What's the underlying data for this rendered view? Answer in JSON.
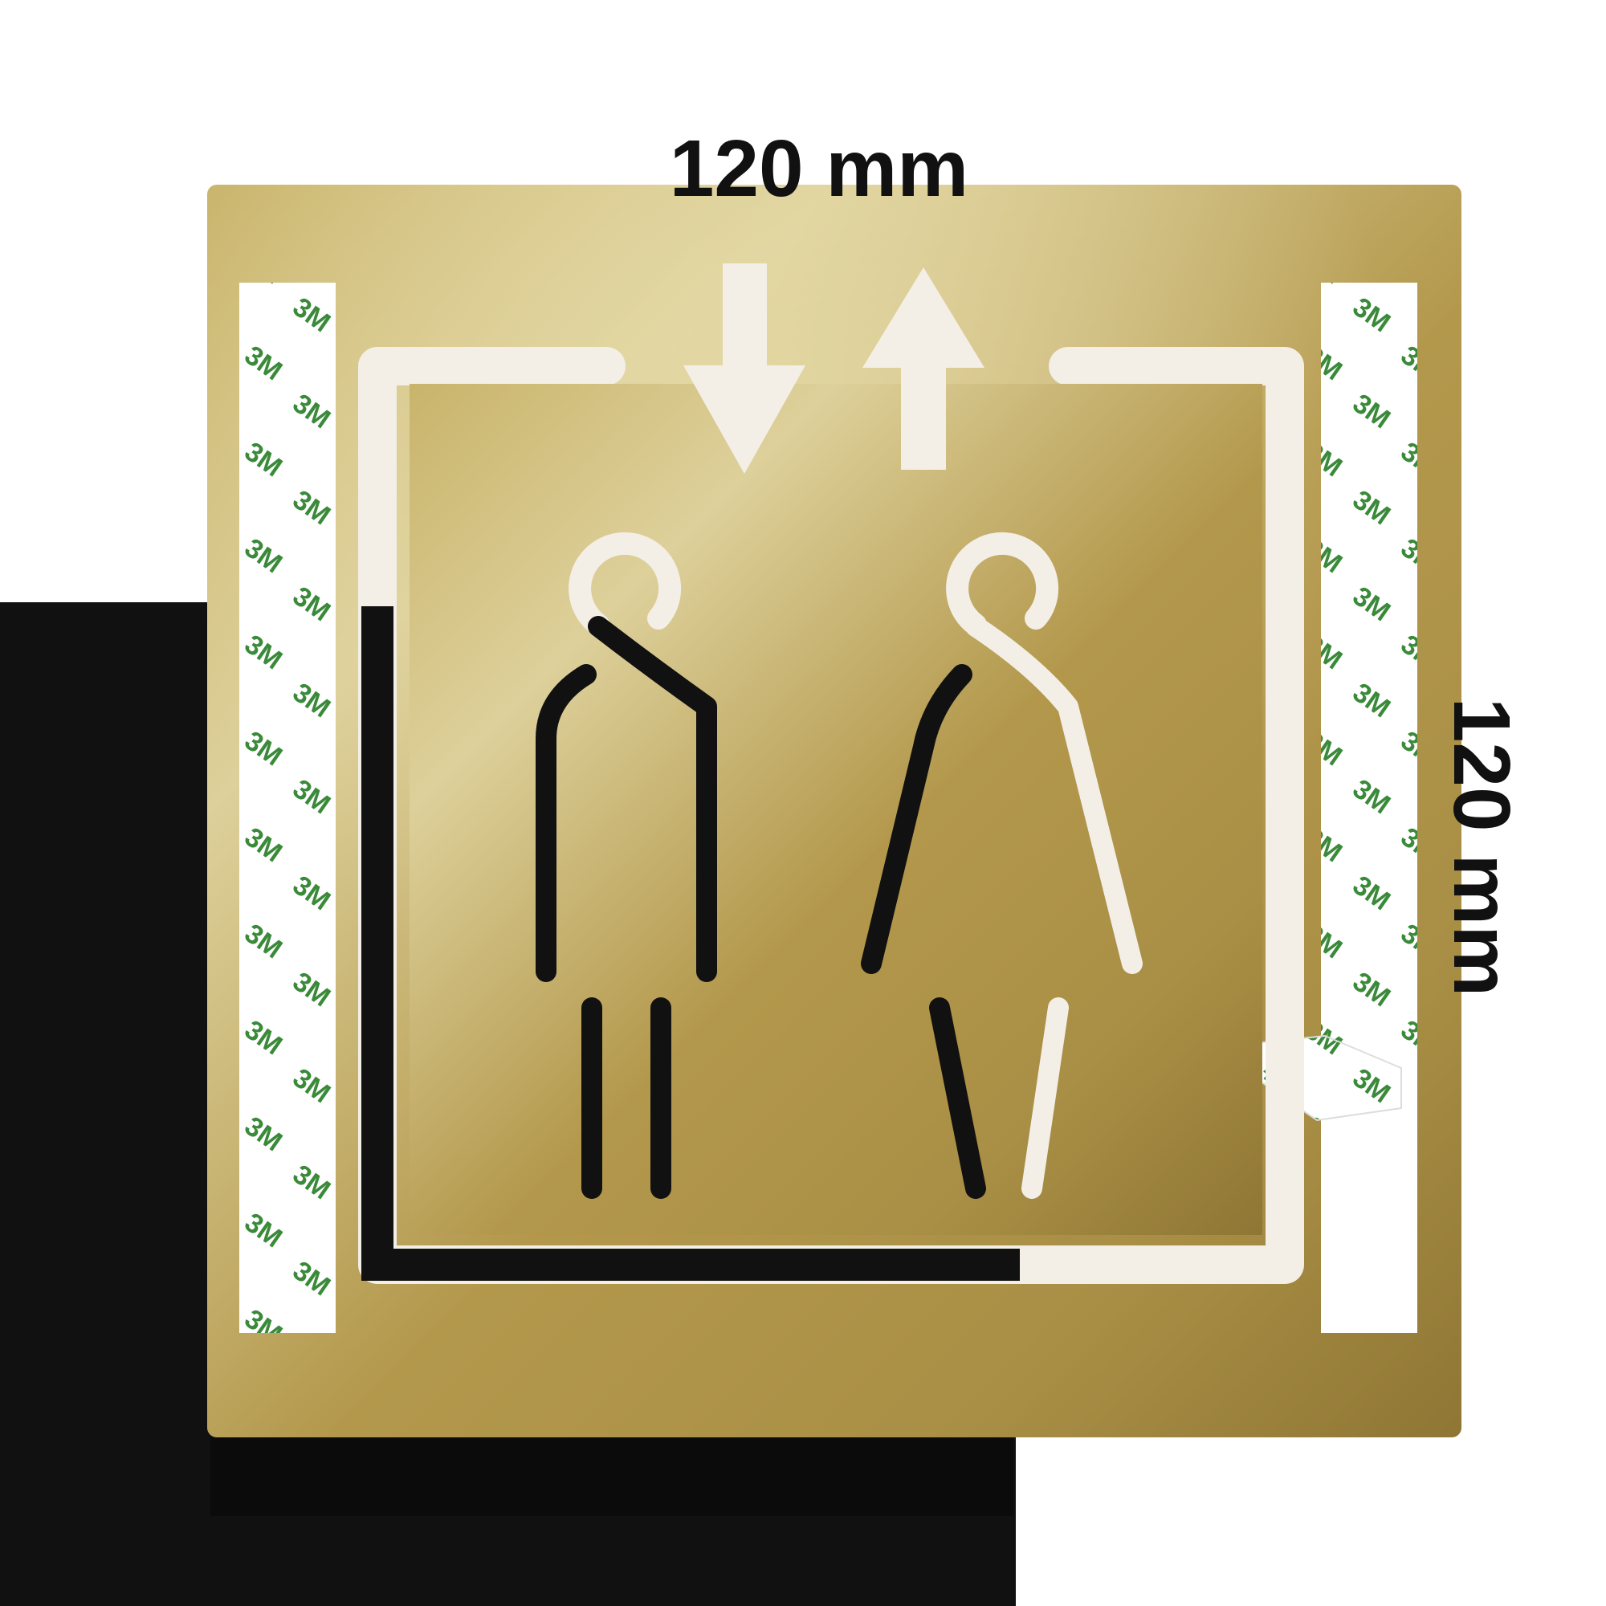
{
  "dimensions": {
    "width_label": "120 mm",
    "height_label": "120 mm"
  },
  "sign": {
    "pictogram": "elevator",
    "arrows": [
      "arrow-down-icon",
      "arrow-up-icon"
    ],
    "figures": [
      "man-icon",
      "woman-icon"
    ],
    "tape_brand_text": "3M"
  },
  "colors": {
    "background": "#ffffff",
    "black_panel": "#111111",
    "plate_gold": "#c2ab62",
    "plate_gold_light": "#ddd09a",
    "plate_gold_dark": "#8f7634",
    "tape_white": "#ffffff",
    "tape_print": "#3a8a3a",
    "dimension_text": "#111111"
  }
}
